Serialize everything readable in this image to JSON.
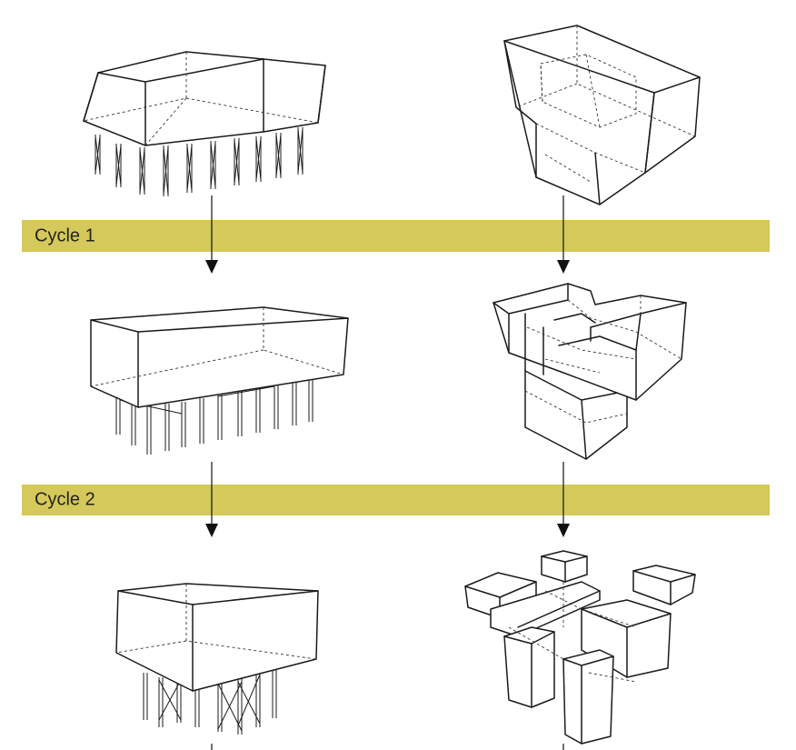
{
  "cycles": [
    {
      "label": "Cycle 1"
    },
    {
      "label": "Cycle 2"
    }
  ],
  "colors": {
    "band": "#d4c95a",
    "line": "#1a1a1a"
  }
}
